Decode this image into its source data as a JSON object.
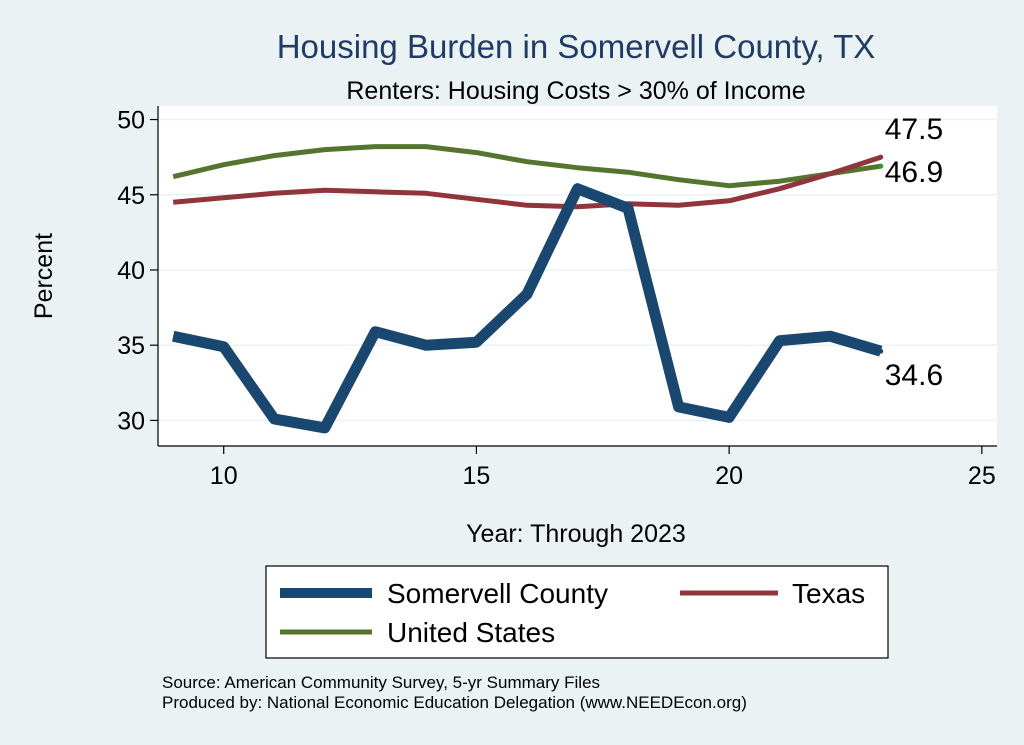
{
  "chart_data": {
    "type": "line",
    "title": "Housing Burden in Somervell County, TX",
    "subtitle": "Renters: Housing Costs > 30% of Income",
    "xlabel": "Year: Through 2023",
    "ylabel": "Percent",
    "xlim": [
      8.7,
      25.3
    ],
    "ylim": [
      28.3,
      50.9
    ],
    "xticks": [
      10,
      15,
      20,
      25
    ],
    "yticks": [
      30,
      35,
      40,
      45,
      50
    ],
    "grid": true,
    "legend_placement": "bottom",
    "x": [
      9,
      10,
      11,
      12,
      13,
      14,
      15,
      16,
      17,
      18,
      19,
      20,
      21,
      22,
      23
    ],
    "series": [
      {
        "name": "Somervell County",
        "color": "#1a476f",
        "values": [
          35.6,
          34.9,
          30.1,
          29.5,
          35.9,
          35.0,
          35.2,
          38.4,
          45.4,
          44.1,
          30.9,
          30.2,
          35.3,
          35.6,
          34.6
        ],
        "end_label": "34.6"
      },
      {
        "name": "Texas",
        "color": "#90353b",
        "values": [
          44.5,
          44.8,
          45.1,
          45.3,
          45.2,
          45.1,
          44.7,
          44.3,
          44.2,
          44.4,
          44.3,
          44.6,
          45.4,
          46.4,
          47.5
        ],
        "end_label": "47.5"
      },
      {
        "name": "United States",
        "color": "#55752f",
        "values": [
          46.2,
          47.0,
          47.6,
          48.0,
          48.2,
          48.2,
          47.8,
          47.2,
          46.8,
          46.5,
          46.0,
          45.6,
          45.9,
          46.4,
          46.9
        ],
        "end_label": "46.9"
      }
    ],
    "notes": [
      "Source: American Community Survey, 5-yr Summary Files",
      "Produced by: National Economic Education Delegation (www.NEEDEcon.org)"
    ]
  }
}
